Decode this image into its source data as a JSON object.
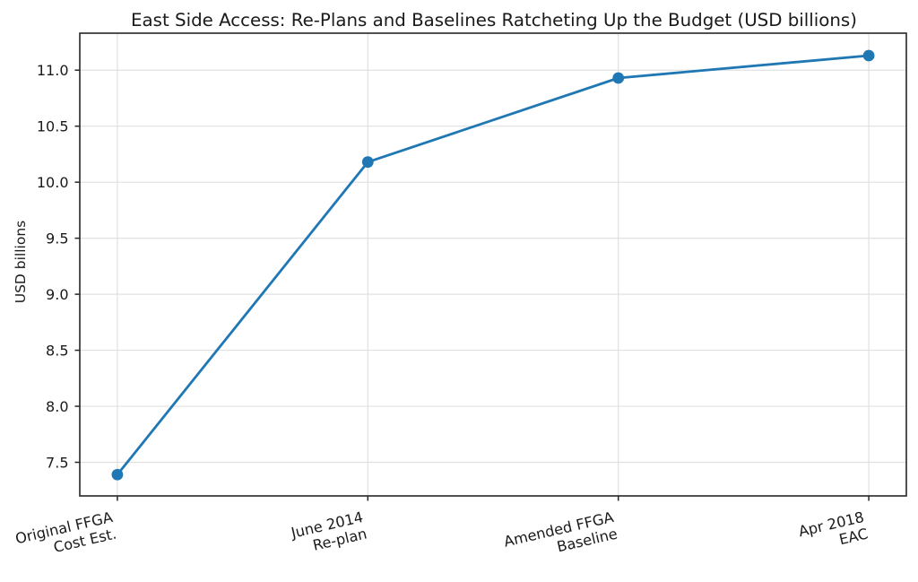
{
  "chart_data": {
    "type": "line",
    "title": "East Side Access: Re-Plans and Baselines Ratcheting Up the Budget (USD billions)",
    "xlabel": "",
    "ylabel": "USD billions",
    "categories": [
      "Original FFGA\nCost Est.",
      "June 2014\nRe-plan",
      "Amended FFGA\nBaseline",
      "Apr 2018\nEAC"
    ],
    "values": [
      7.39,
      10.18,
      10.93,
      11.13
    ],
    "ylim": [
      7.2,
      11.33
    ],
    "yticks": [
      7.5,
      8.0,
      8.5,
      9.0,
      9.5,
      10.0,
      10.5,
      11.0
    ],
    "grid": true,
    "legend": false,
    "line_color": "#1f77b4",
    "marker": "circle",
    "x_tick_rotation_deg": 13,
    "text_color": "#1a1a1a",
    "grid_color": "#e0e0e0",
    "spine_color": "#262626"
  }
}
